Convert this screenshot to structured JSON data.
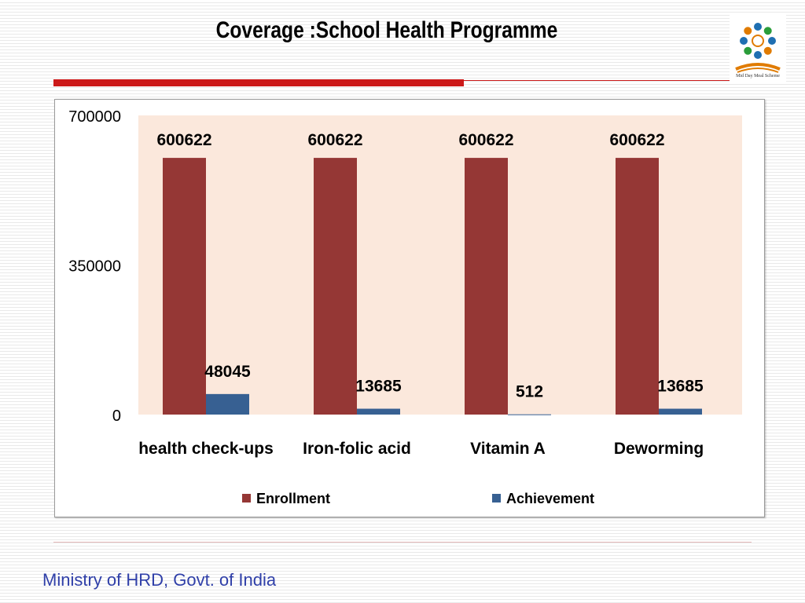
{
  "slide": {
    "title": "Coverage :School Health Programme",
    "footer": "Ministry of HRD, Govt. of India",
    "logo_text": "Mid Day Meal Scheme"
  },
  "colors": {
    "accent_red": "#cc1a1a",
    "plot_background": "#fbe8dc",
    "enrollment": "#953735",
    "achievement": "#376092",
    "footer_text": "#2f3fa8"
  },
  "chart_data": {
    "type": "bar",
    "categories": [
      "health check-ups",
      "Iron-folic acid",
      "Vitamin A",
      "Deworming"
    ],
    "series": [
      {
        "name": "Enrollment",
        "values": [
          600622,
          600622,
          600622,
          600622
        ]
      },
      {
        "name": "Achievement",
        "values": [
          48045,
          13685,
          512,
          13685
        ]
      }
    ],
    "yticks": [
      "0",
      "350000",
      "700000"
    ],
    "ylim": [
      0,
      700000
    ],
    "grid": false,
    "legend_position": "bottom"
  }
}
